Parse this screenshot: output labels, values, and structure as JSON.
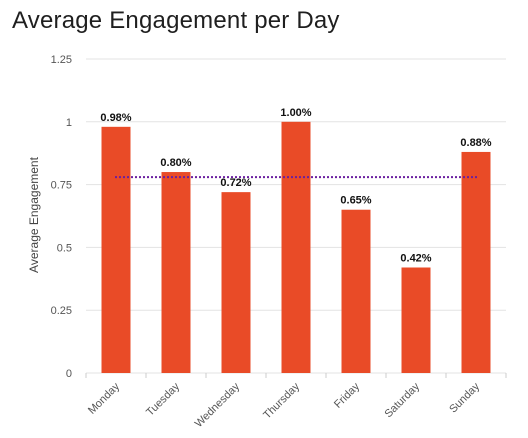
{
  "chart_data": {
    "type": "bar",
    "title": "Average Engagement per Day",
    "xlabel": "",
    "ylabel": "Average Engagement",
    "categories": [
      "Monday",
      "Tuesday",
      "Wednesday",
      "Thursday",
      "Friday",
      "Saturday",
      "Sunday"
    ],
    "values": [
      0.98,
      0.8,
      0.72,
      1.0,
      0.65,
      0.42,
      0.88
    ],
    "data_labels": [
      "0.98%",
      "0.80%",
      "0.72%",
      "1.00%",
      "0.65%",
      "0.42%",
      "0.88%"
    ],
    "ylim": [
      0,
      1.25
    ],
    "yticks": [
      0,
      0.25,
      0.5,
      0.75,
      1,
      1.25
    ],
    "ytick_labels": [
      "0",
      "0.25",
      "0.5",
      "0.75",
      "1",
      "1.25"
    ],
    "average_line": 0.78,
    "grid": true,
    "colors": {
      "bar": "#e94b27",
      "average_line": "#6b1fa0",
      "grid": "#e3e3e3"
    }
  }
}
